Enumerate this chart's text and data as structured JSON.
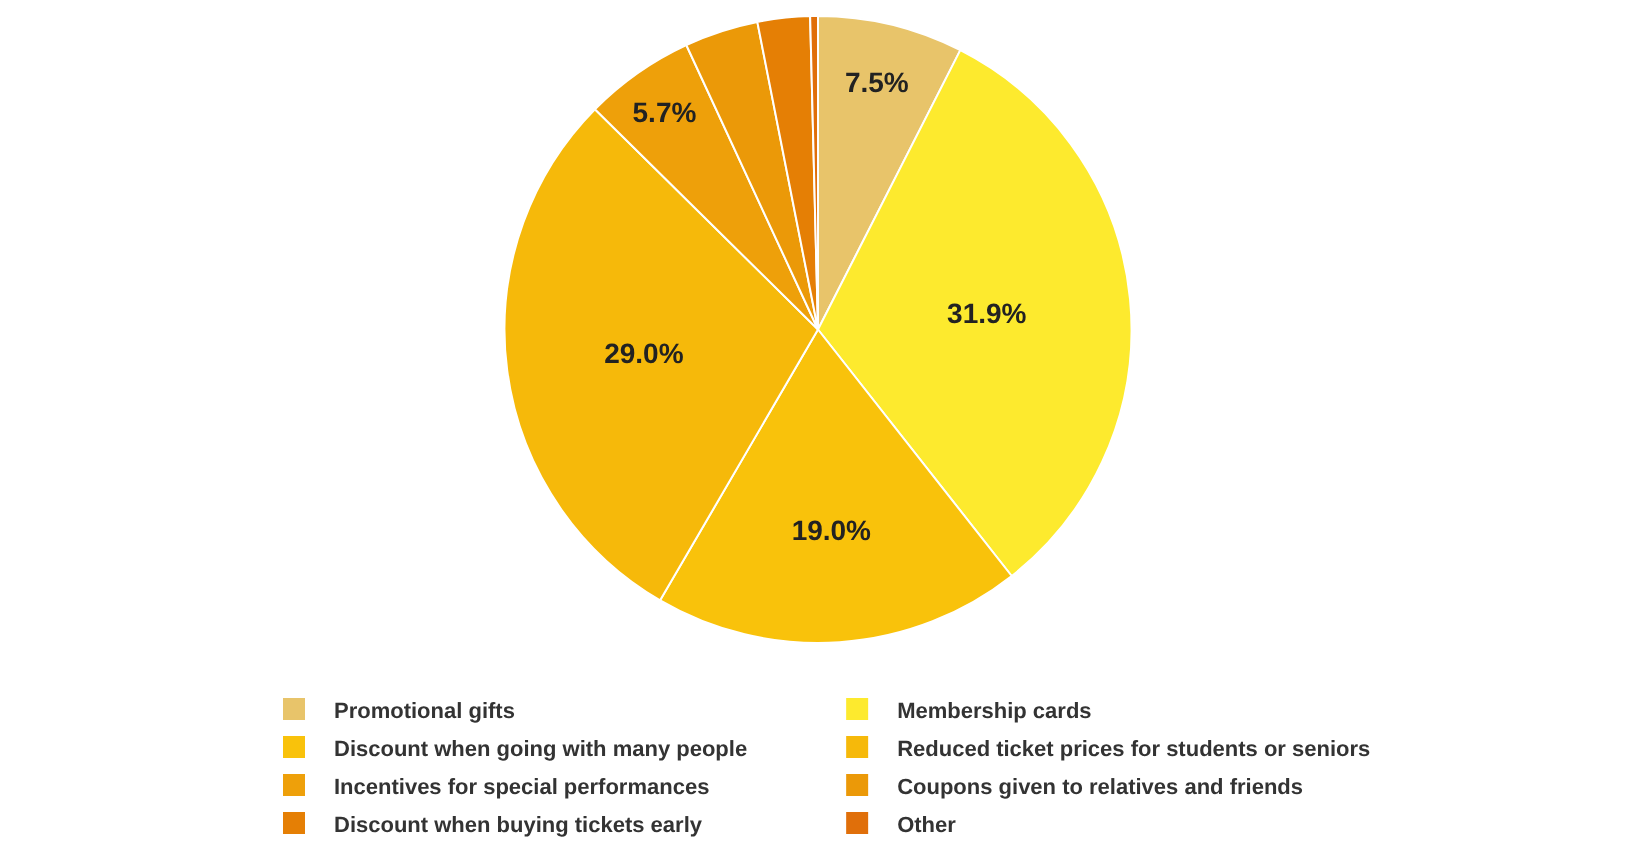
{
  "chart_data": {
    "type": "pie",
    "categories": [
      "Promotional gifts",
      "Membership cards",
      "Discount when going with many people",
      "Reduced ticket prices for students or seniors",
      "Incentives for special performances",
      "Coupons given to relatives and friends",
      "Discount when buying tickets early",
      "Other"
    ],
    "values": [
      7.5,
      31.9,
      19.0,
      29.0,
      5.7,
      3.8,
      2.7,
      0.4
    ],
    "value_labels": [
      "7.5%",
      "31.9%",
      "19.0%",
      "29.0%",
      "5.7%",
      null,
      null,
      null
    ],
    "colors": [
      "#e8c46a",
      "#fdea2e",
      "#f9c20b",
      "#f6b90a",
      "#eea00a",
      "#eb9908",
      "#e57f05",
      "#e06f0a"
    ],
    "legend": "bottom"
  }
}
